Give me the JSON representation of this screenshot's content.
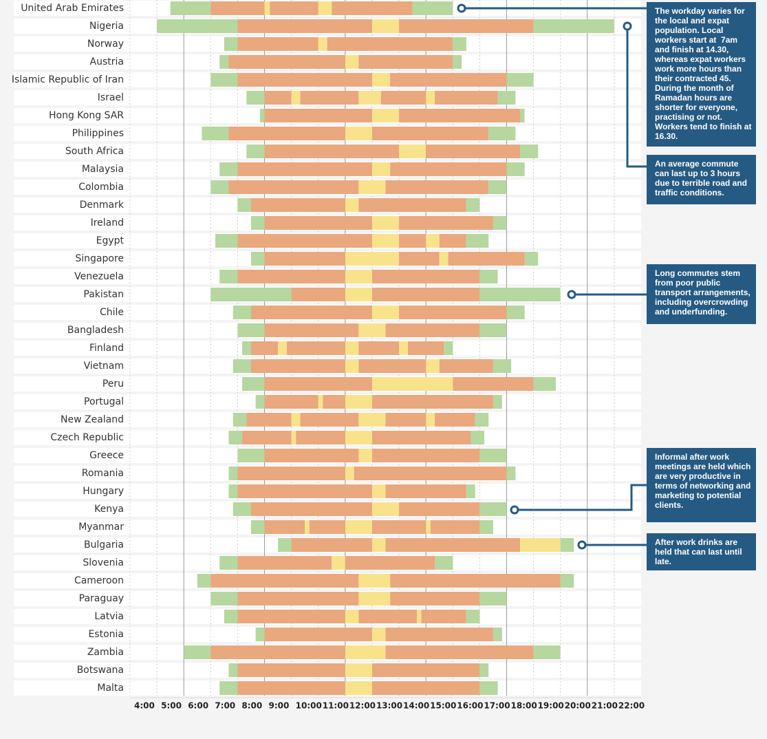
{
  "chart_data": {
    "type": "timeline",
    "xlim": [
      4,
      23
    ],
    "xticks": [
      {
        "value": 4,
        "label": "4:00"
      },
      {
        "value": 5,
        "label": "5:00"
      },
      {
        "value": 6,
        "label": "6:00"
      },
      {
        "value": 7,
        "label": "7:00"
      },
      {
        "value": 8,
        "label": "8:00"
      },
      {
        "value": 9,
        "label": "9:00"
      },
      {
        "value": 10,
        "label": "10:00"
      },
      {
        "value": 11,
        "label": "11:00"
      },
      {
        "value": 12,
        "label": "12:00"
      },
      {
        "value": 13,
        "label": "13:00"
      },
      {
        "value": 14,
        "label": "14:00"
      },
      {
        "value": 15,
        "label": "15:00"
      },
      {
        "value": 16,
        "label": "16:00"
      },
      {
        "value": 17,
        "label": "17:00"
      },
      {
        "value": 18,
        "label": "18:00"
      },
      {
        "value": 19,
        "label": "19:00"
      },
      {
        "value": 20,
        "label": "20:00"
      },
      {
        "value": 21,
        "label": "21:00"
      },
      {
        "value": 22,
        "label": "22:00"
      }
    ],
    "grid": true,
    "rows": [
      {
        "name": "United Arab Emirates",
        "bounds": [
          5.5,
          7,
          9,
          9.2,
          11,
          11.5,
          14.5,
          16
        ],
        "colors": [
          "#b6d7a0",
          "#e9a87e",
          "#f8e38c",
          "#e9a87e",
          "#f8e38c",
          "#e9a87e",
          "#b6d7a0"
        ]
      },
      {
        "name": "Nigeria",
        "bounds": [
          5,
          8,
          13,
          14,
          19,
          22
        ],
        "colors": [
          "#b6d7a0",
          "#e9a87e",
          "#f8e38c",
          "#e9a87e",
          "#b6d7a0"
        ]
      },
      {
        "name": "Norway",
        "bounds": [
          7.5,
          8,
          11,
          11.33,
          16,
          16.5
        ],
        "colors": [
          "#b6d7a0",
          "#e9a87e",
          "#f8e38c",
          "#e9a87e",
          "#b6d7a0"
        ]
      },
      {
        "name": "Austria",
        "bounds": [
          7.33,
          7.67,
          12,
          12.5,
          16,
          16.33
        ],
        "colors": [
          "#b6d7a0",
          "#e9a87e",
          "#f8e38c",
          "#e9a87e",
          "#b6d7a0"
        ]
      },
      {
        "name": "Islamic Republic of Iran",
        "bounds": [
          7,
          8,
          13,
          13.67,
          18,
          19
        ],
        "colors": [
          "#b6d7a0",
          "#e9a87e",
          "#f8e38c",
          "#e9a87e",
          "#b6d7a0"
        ]
      },
      {
        "name": "Israel",
        "bounds": [
          8.33,
          9,
          10,
          10.33,
          12.5,
          13.33,
          15,
          15.33,
          17.67,
          18.33
        ],
        "colors": [
          "#b6d7a0",
          "#e9a87e",
          "#f8e38c",
          "#e9a87e",
          "#f8e38c",
          "#e9a87e",
          "#f8e38c",
          "#e9a87e",
          "#b6d7a0"
        ]
      },
      {
        "name": "Hong Kong SAR",
        "bounds": [
          8.83,
          9,
          13,
          14,
          18.5,
          18.67
        ],
        "colors": [
          "#b6d7a0",
          "#e9a87e",
          "#f8e38c",
          "#e9a87e",
          "#b6d7a0"
        ]
      },
      {
        "name": "Philippines",
        "bounds": [
          6.67,
          7.67,
          12,
          13,
          17.33,
          18.33
        ],
        "colors": [
          "#b6d7a0",
          "#e9a87e",
          "#f8e38c",
          "#e9a87e",
          "#b6d7a0"
        ]
      },
      {
        "name": "South Africa",
        "bounds": [
          8.33,
          9,
          14,
          15,
          18.5,
          19.17
        ],
        "colors": [
          "#b6d7a0",
          "#e9a87e",
          "#f8e38c",
          "#e9a87e",
          "#b6d7a0"
        ]
      },
      {
        "name": "Malaysia",
        "bounds": [
          7.33,
          8,
          13,
          13.67,
          18,
          18.67
        ],
        "colors": [
          "#b6d7a0",
          "#e9a87e",
          "#f8e38c",
          "#e9a87e",
          "#b6d7a0"
        ]
      },
      {
        "name": "Colombia",
        "bounds": [
          7,
          7.67,
          12.5,
          13.5,
          17.33,
          18
        ],
        "colors": [
          "#b6d7a0",
          "#e9a87e",
          "#f8e38c",
          "#e9a87e",
          "#b6d7a0"
        ]
      },
      {
        "name": "Denmark",
        "bounds": [
          8,
          8.5,
          12,
          12.5,
          16.5,
          17
        ],
        "colors": [
          "#b6d7a0",
          "#e9a87e",
          "#f8e38c",
          "#e9a87e",
          "#b6d7a0"
        ]
      },
      {
        "name": "Ireland",
        "bounds": [
          8.5,
          9,
          13,
          14,
          17.5,
          18
        ],
        "colors": [
          "#b6d7a0",
          "#e9a87e",
          "#f8e38c",
          "#e9a87e",
          "#b6d7a0"
        ]
      },
      {
        "name": "Egypt",
        "bounds": [
          7.17,
          8,
          13,
          14,
          15,
          15.5,
          16.5,
          17.33
        ],
        "colors": [
          "#b6d7a0",
          "#e9a87e",
          "#f8e38c",
          "#e9a87e",
          "#f8e38c",
          "#e9a87e",
          "#b6d7a0"
        ]
      },
      {
        "name": "Singapore",
        "bounds": [
          8.5,
          9,
          12,
          14,
          15.5,
          15.83,
          18.67,
          19.17
        ],
        "colors": [
          "#b6d7a0",
          "#e9a87e",
          "#f8e38c",
          "#e9a87e",
          "#f8e38c",
          "#e9a87e",
          "#b6d7a0"
        ]
      },
      {
        "name": "Venezuela",
        "bounds": [
          7.33,
          8,
          12,
          13,
          17,
          17.67
        ],
        "colors": [
          "#b6d7a0",
          "#e9a87e",
          "#f8e38c",
          "#e9a87e",
          "#b6d7a0"
        ]
      },
      {
        "name": "Pakistan",
        "bounds": [
          7,
          10,
          12,
          13,
          17,
          20
        ],
        "colors": [
          "#b6d7a0",
          "#e9a87e",
          "#f8e38c",
          "#e9a87e",
          "#b6d7a0"
        ]
      },
      {
        "name": "Chile",
        "bounds": [
          7.83,
          8.5,
          13,
          14,
          18,
          18.67
        ],
        "colors": [
          "#b6d7a0",
          "#e9a87e",
          "#f8e38c",
          "#e9a87e",
          "#b6d7a0"
        ]
      },
      {
        "name": "Bangladesh",
        "bounds": [
          8,
          9,
          12.5,
          13.5,
          17,
          18
        ],
        "colors": [
          "#b6d7a0",
          "#e9a87e",
          "#f8e38c",
          "#e9a87e",
          "#b6d7a0"
        ]
      },
      {
        "name": "Finland",
        "bounds": [
          8.17,
          8.5,
          9.5,
          9.83,
          12,
          12.5,
          14,
          14.33,
          15.67,
          16
        ],
        "colors": [
          "#b6d7a0",
          "#e9a87e",
          "#f8e38c",
          "#e9a87e",
          "#f8e38c",
          "#e9a87e",
          "#f8e38c",
          "#e9a87e",
          "#b6d7a0"
        ]
      },
      {
        "name": "Vietnam",
        "bounds": [
          7.83,
          8.5,
          12,
          12.5,
          15,
          15.5,
          17.5,
          18.17
        ],
        "colors": [
          "#b6d7a0",
          "#e9a87e",
          "#f8e38c",
          "#e9a87e",
          "#f8e38c",
          "#e9a87e",
          "#b6d7a0"
        ]
      },
      {
        "name": "Peru",
        "bounds": [
          8.17,
          9,
          13,
          16,
          19,
          19.83
        ],
        "colors": [
          "#b6d7a0",
          "#e9a87e",
          "#f8e38c",
          "#e9a87e",
          "#b6d7a0"
        ]
      },
      {
        "name": "Portugal",
        "bounds": [
          8.67,
          9,
          11,
          11.17,
          12,
          13,
          17.5,
          17.83
        ],
        "colors": [
          "#b6d7a0",
          "#e9a87e",
          "#f8e38c",
          "#e9a87e",
          "#f8e38c",
          "#e9a87e",
          "#b6d7a0"
        ]
      },
      {
        "name": "New Zealand",
        "bounds": [
          7.83,
          8.33,
          10,
          10.33,
          12.5,
          13.5,
          15,
          15.33,
          16.83,
          17.33
        ],
        "colors": [
          "#b6d7a0",
          "#e9a87e",
          "#f8e38c",
          "#e9a87e",
          "#f8e38c",
          "#e9a87e",
          "#f8e38c",
          "#e9a87e",
          "#b6d7a0"
        ]
      },
      {
        "name": "Czech Republic",
        "bounds": [
          7.67,
          8.17,
          10,
          10.17,
          12,
          13,
          16.67,
          17.17
        ],
        "colors": [
          "#b6d7a0",
          "#e9a87e",
          "#f8e38c",
          "#e9a87e",
          "#f8e38c",
          "#e9a87e",
          "#b6d7a0"
        ]
      },
      {
        "name": "Greece",
        "bounds": [
          8,
          9,
          12.5,
          13,
          17,
          18
        ],
        "colors": [
          "#b6d7a0",
          "#e9a87e",
          "#f8e38c",
          "#e9a87e",
          "#b6d7a0"
        ]
      },
      {
        "name": "Romania",
        "bounds": [
          7.67,
          8,
          12,
          12.33,
          18,
          18.33
        ],
        "colors": [
          "#b6d7a0",
          "#e9a87e",
          "#f8e38c",
          "#e9a87e",
          "#b6d7a0"
        ]
      },
      {
        "name": "Hungary",
        "bounds": [
          7.67,
          8,
          13,
          13.5,
          16.5,
          16.83
        ],
        "colors": [
          "#b6d7a0",
          "#e9a87e",
          "#f8e38c",
          "#e9a87e",
          "#b6d7a0"
        ]
      },
      {
        "name": "Kenya",
        "bounds": [
          7.83,
          8.5,
          13,
          14,
          17,
          18
        ],
        "colors": [
          "#b6d7a0",
          "#e9a87e",
          "#f8e38c",
          "#e9a87e",
          "#b6d7a0"
        ]
      },
      {
        "name": "Myanmar",
        "bounds": [
          8.5,
          9,
          10.5,
          10.67,
          12,
          13,
          15,
          15.17,
          17,
          17.5
        ],
        "colors": [
          "#b6d7a0",
          "#e9a87e",
          "#f8e38c",
          "#e9a87e",
          "#f8e38c",
          "#e9a87e",
          "#f8e38c",
          "#e9a87e",
          "#b6d7a0"
        ]
      },
      {
        "name": "Bulgaria",
        "bounds": [
          9.5,
          10,
          13,
          13.5,
          18.5,
          20,
          20.5
        ],
        "colors": [
          "#b6d7a0",
          "#e9a87e",
          "#f8e38c",
          "#e9a87e",
          "#f8e38c",
          "#b6d7a0"
        ]
      },
      {
        "name": "Slovenia",
        "bounds": [
          7.33,
          8,
          11.5,
          12,
          15.33,
          16
        ],
        "colors": [
          "#b6d7a0",
          "#e9a87e",
          "#f8e38c",
          "#e9a87e",
          "#b6d7a0"
        ]
      },
      {
        "name": "Cameroon",
        "bounds": [
          6.5,
          7,
          12.5,
          13.67,
          20,
          20.5
        ],
        "colors": [
          "#b6d7a0",
          "#e9a87e",
          "#f8e38c",
          "#e9a87e",
          "#b6d7a0"
        ]
      },
      {
        "name": "Paraguay",
        "bounds": [
          7,
          8,
          12.5,
          13.67,
          17,
          18
        ],
        "colors": [
          "#b6d7a0",
          "#e9a87e",
          "#f8e38c",
          "#e9a87e",
          "#b6d7a0"
        ]
      },
      {
        "name": "Latvia",
        "bounds": [
          7.5,
          8,
          12,
          12.5,
          14.67,
          14.83,
          16.5,
          17
        ],
        "colors": [
          "#b6d7a0",
          "#e9a87e",
          "#f8e38c",
          "#e9a87e",
          "#f8e38c",
          "#e9a87e",
          "#b6d7a0"
        ]
      },
      {
        "name": "Estonia",
        "bounds": [
          8.67,
          9,
          13,
          13.5,
          17.5,
          17.83
        ],
        "colors": [
          "#b6d7a0",
          "#e9a87e",
          "#f8e38c",
          "#e9a87e",
          "#b6d7a0"
        ]
      },
      {
        "name": "Zambia",
        "bounds": [
          6,
          7,
          12,
          13.5,
          19,
          20
        ],
        "colors": [
          "#b6d7a0",
          "#e9a87e",
          "#f8e38c",
          "#e9a87e",
          "#b6d7a0"
        ]
      },
      {
        "name": "Botswana",
        "bounds": [
          7.67,
          8,
          12,
          13,
          17,
          17.33
        ],
        "colors": [
          "#b6d7a0",
          "#e9a87e",
          "#f8e38c",
          "#e9a87e",
          "#b6d7a0"
        ]
      },
      {
        "name": "Malta",
        "bounds": [
          7.33,
          8,
          12,
          13,
          17,
          17.67
        ],
        "colors": [
          "#b6d7a0",
          "#e9a87e",
          "#f8e38c",
          "#e9a87e",
          "#b6d7a0"
        ]
      }
    ],
    "annotations": [
      "The workday varies for the local and expat population. Local workers start at  7am and finish at 14.30, whereas expat workers work more hours than their contracted 45. During the month of Ramadan hours are shorter for everyone, practising or not. Workers tend to finish at 16.30.",
      "An average commute can last up to 3 hours due to terrible road and traffic conditions.",
      "Long commutes stem from poor public transport arrangements, including overcrowding and underfunding.",
      "Informal after work meetings are held which are very productive in terms of networking and marketing to potential clients.",
      "After work drinks are held that can last until late."
    ]
  }
}
